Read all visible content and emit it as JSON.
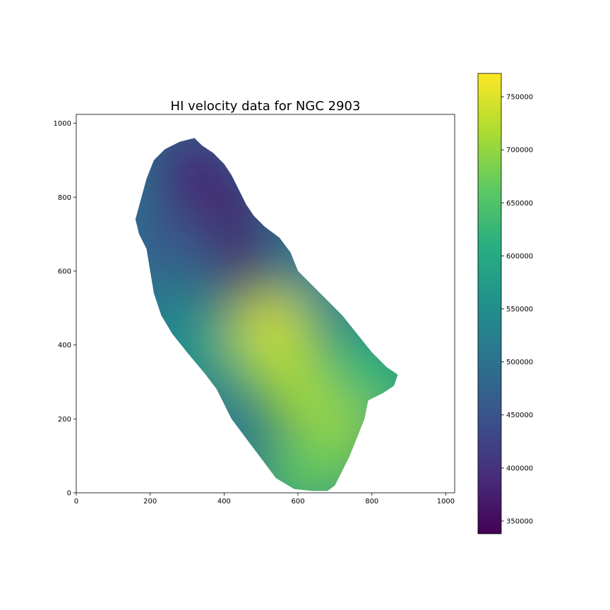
{
  "chart_data": {
    "type": "heatmap",
    "title": "HI velocity data for NGC 2903",
    "xlabel": "",
    "ylabel": "",
    "xlim": [
      0,
      1024
    ],
    "ylim": [
      0,
      1024
    ],
    "x_ticks": [
      "0",
      "200",
      "400",
      "600",
      "800",
      "1000"
    ],
    "y_ticks": [
      "0",
      "200",
      "400",
      "600",
      "800",
      "1000"
    ],
    "colormap": "viridis",
    "colorbar": {
      "range": [
        338000,
        772000
      ],
      "ticks": [
        "350000",
        "400000",
        "450000",
        "500000",
        "550000",
        "600000",
        "650000",
        "700000",
        "750000"
      ]
    },
    "grid": false,
    "galaxy_outline": [
      [
        160,
        740
      ],
      [
        190,
        850
      ],
      [
        210,
        900
      ],
      [
        240,
        930
      ],
      [
        280,
        950
      ],
      [
        320,
        960
      ],
      [
        340,
        940
      ],
      [
        370,
        920
      ],
      [
        400,
        890
      ],
      [
        420,
        860
      ],
      [
        440,
        820
      ],
      [
        460,
        780
      ],
      [
        480,
        750
      ],
      [
        510,
        720
      ],
      [
        550,
        690
      ],
      [
        580,
        650
      ],
      [
        600,
        600
      ],
      [
        640,
        560
      ],
      [
        680,
        520
      ],
      [
        720,
        480
      ],
      [
        760,
        430
      ],
      [
        800,
        380
      ],
      [
        840,
        340
      ],
      [
        870,
        320
      ],
      [
        860,
        290
      ],
      [
        830,
        270
      ],
      [
        790,
        250
      ],
      [
        780,
        200
      ],
      [
        760,
        150
      ],
      [
        740,
        100
      ],
      [
        720,
        60
      ],
      [
        700,
        20
      ],
      [
        680,
        5
      ],
      [
        640,
        5
      ],
      [
        590,
        10
      ],
      [
        540,
        40
      ],
      [
        510,
        80
      ],
      [
        480,
        120
      ],
      [
        450,
        160
      ],
      [
        420,
        200
      ],
      [
        400,
        240
      ],
      [
        380,
        280
      ],
      [
        350,
        320
      ],
      [
        300,
        380
      ],
      [
        260,
        430
      ],
      [
        230,
        480
      ],
      [
        210,
        540
      ],
      [
        200,
        600
      ],
      [
        190,
        660
      ],
      [
        170,
        700
      ]
    ],
    "velocity_field": [
      {
        "x": 320,
        "y": 900,
        "v": 400000
      },
      {
        "x": 330,
        "y": 800,
        "v": 385000
      },
      {
        "x": 400,
        "y": 760,
        "v": 370000
      },
      {
        "x": 420,
        "y": 680,
        "v": 375000
      },
      {
        "x": 480,
        "y": 580,
        "v": 350000
      },
      {
        "x": 250,
        "y": 680,
        "v": 445000
      },
      {
        "x": 300,
        "y": 600,
        "v": 470000
      },
      {
        "x": 600,
        "y": 640,
        "v": 480000
      },
      {
        "x": 640,
        "y": 560,
        "v": 530000
      },
      {
        "x": 300,
        "y": 450,
        "v": 540000
      },
      {
        "x": 380,
        "y": 380,
        "v": 580000
      },
      {
        "x": 530,
        "y": 440,
        "v": 745000
      },
      {
        "x": 580,
        "y": 320,
        "v": 720000
      },
      {
        "x": 640,
        "y": 250,
        "v": 715000
      },
      {
        "x": 720,
        "y": 180,
        "v": 715000
      },
      {
        "x": 760,
        "y": 350,
        "v": 620000
      },
      {
        "x": 850,
        "y": 300,
        "v": 625000
      },
      {
        "x": 700,
        "y": 80,
        "v": 680000
      },
      {
        "x": 600,
        "y": 40,
        "v": 660000
      }
    ]
  }
}
